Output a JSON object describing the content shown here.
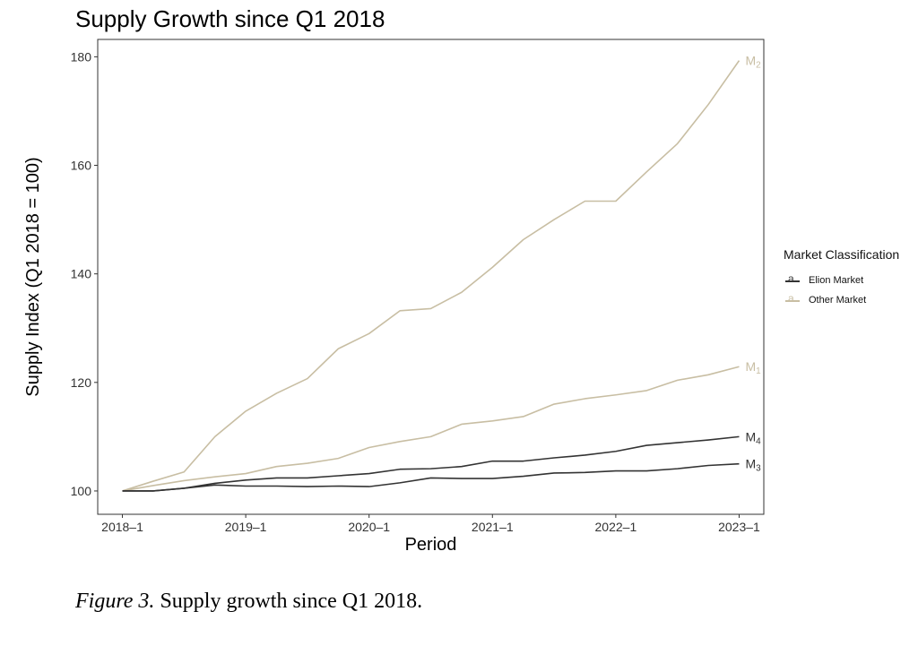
{
  "chart_data": {
    "type": "line",
    "title": "Supply Growth since Q1 2018",
    "xlabel": "Period",
    "ylabel": "Supply Index (Q1 2018 = 100)",
    "x_tick_labels": [
      "2018–1",
      "2019–1",
      "2020–1",
      "2021–1",
      "2022–1",
      "2023–1"
    ],
    "y_ticks": [
      100,
      120,
      140,
      160,
      180
    ],
    "xlim": [
      -0.8,
      20.8
    ],
    "ylim": [
      95.7,
      183.2
    ],
    "grid": false,
    "legend": {
      "title": "Market Classification",
      "placement": "right",
      "entries": [
        {
          "label": "Elion Market",
          "color": "#333333",
          "key_glyph": "a"
        },
        {
          "label": "Other Market",
          "color": "#c8bea3",
          "key_glyph": "a"
        }
      ]
    },
    "x_periods": [
      "2018–1",
      "2018–2",
      "2018–3",
      "2018–4",
      "2019–1",
      "2019–2",
      "2019–3",
      "2019–4",
      "2020–1",
      "2020–2",
      "2020–3",
      "2020–4",
      "2021–1",
      "2021–2",
      "2021–3",
      "2021–4",
      "2022–1",
      "2022–2",
      "2022–3",
      "2022–4",
      "2023–1"
    ],
    "series": [
      {
        "name": "M",
        "sub": "2",
        "market": "Other Market",
        "color": "#c8bea3",
        "values": [
          100,
          101.8,
          103.5,
          110,
          114.7,
          118,
          120.7,
          126.2,
          129,
          133.2,
          133.6,
          136.6,
          141.2,
          146.3,
          150,
          153.4,
          153.4,
          158.8,
          164,
          171.2,
          179.3
        ]
      },
      {
        "name": "M",
        "sub": "1",
        "market": "Other Market",
        "color": "#c8bea3",
        "values": [
          100,
          101,
          101.9,
          102.6,
          103.2,
          104.5,
          105.1,
          106,
          108,
          109.1,
          110,
          112.3,
          112.9,
          113.7,
          116,
          117,
          117.7,
          118.5,
          120.4,
          121.4,
          122.9
        ]
      },
      {
        "name": "M",
        "sub": "4",
        "market": "Elion Market",
        "color": "#333333",
        "values": [
          100,
          100,
          100.5,
          101.4,
          102,
          102.4,
          102.4,
          102.8,
          103.2,
          104,
          104.1,
          104.5,
          105.5,
          105.5,
          106.1,
          106.6,
          107.3,
          108.4,
          108.9,
          109.4,
          110
        ]
      },
      {
        "name": "M",
        "sub": "3",
        "market": "Elion Market",
        "color": "#333333",
        "values": [
          100,
          100,
          100.5,
          101.1,
          100.9,
          100.9,
          100.8,
          100.9,
          100.8,
          101.5,
          102.4,
          102.3,
          102.3,
          102.7,
          103.3,
          103.4,
          103.7,
          103.7,
          104.1,
          104.7,
          105
        ]
      }
    ]
  },
  "caption": {
    "figure_label": "Figure 3.",
    "text": " Supply growth since Q1 2018."
  }
}
